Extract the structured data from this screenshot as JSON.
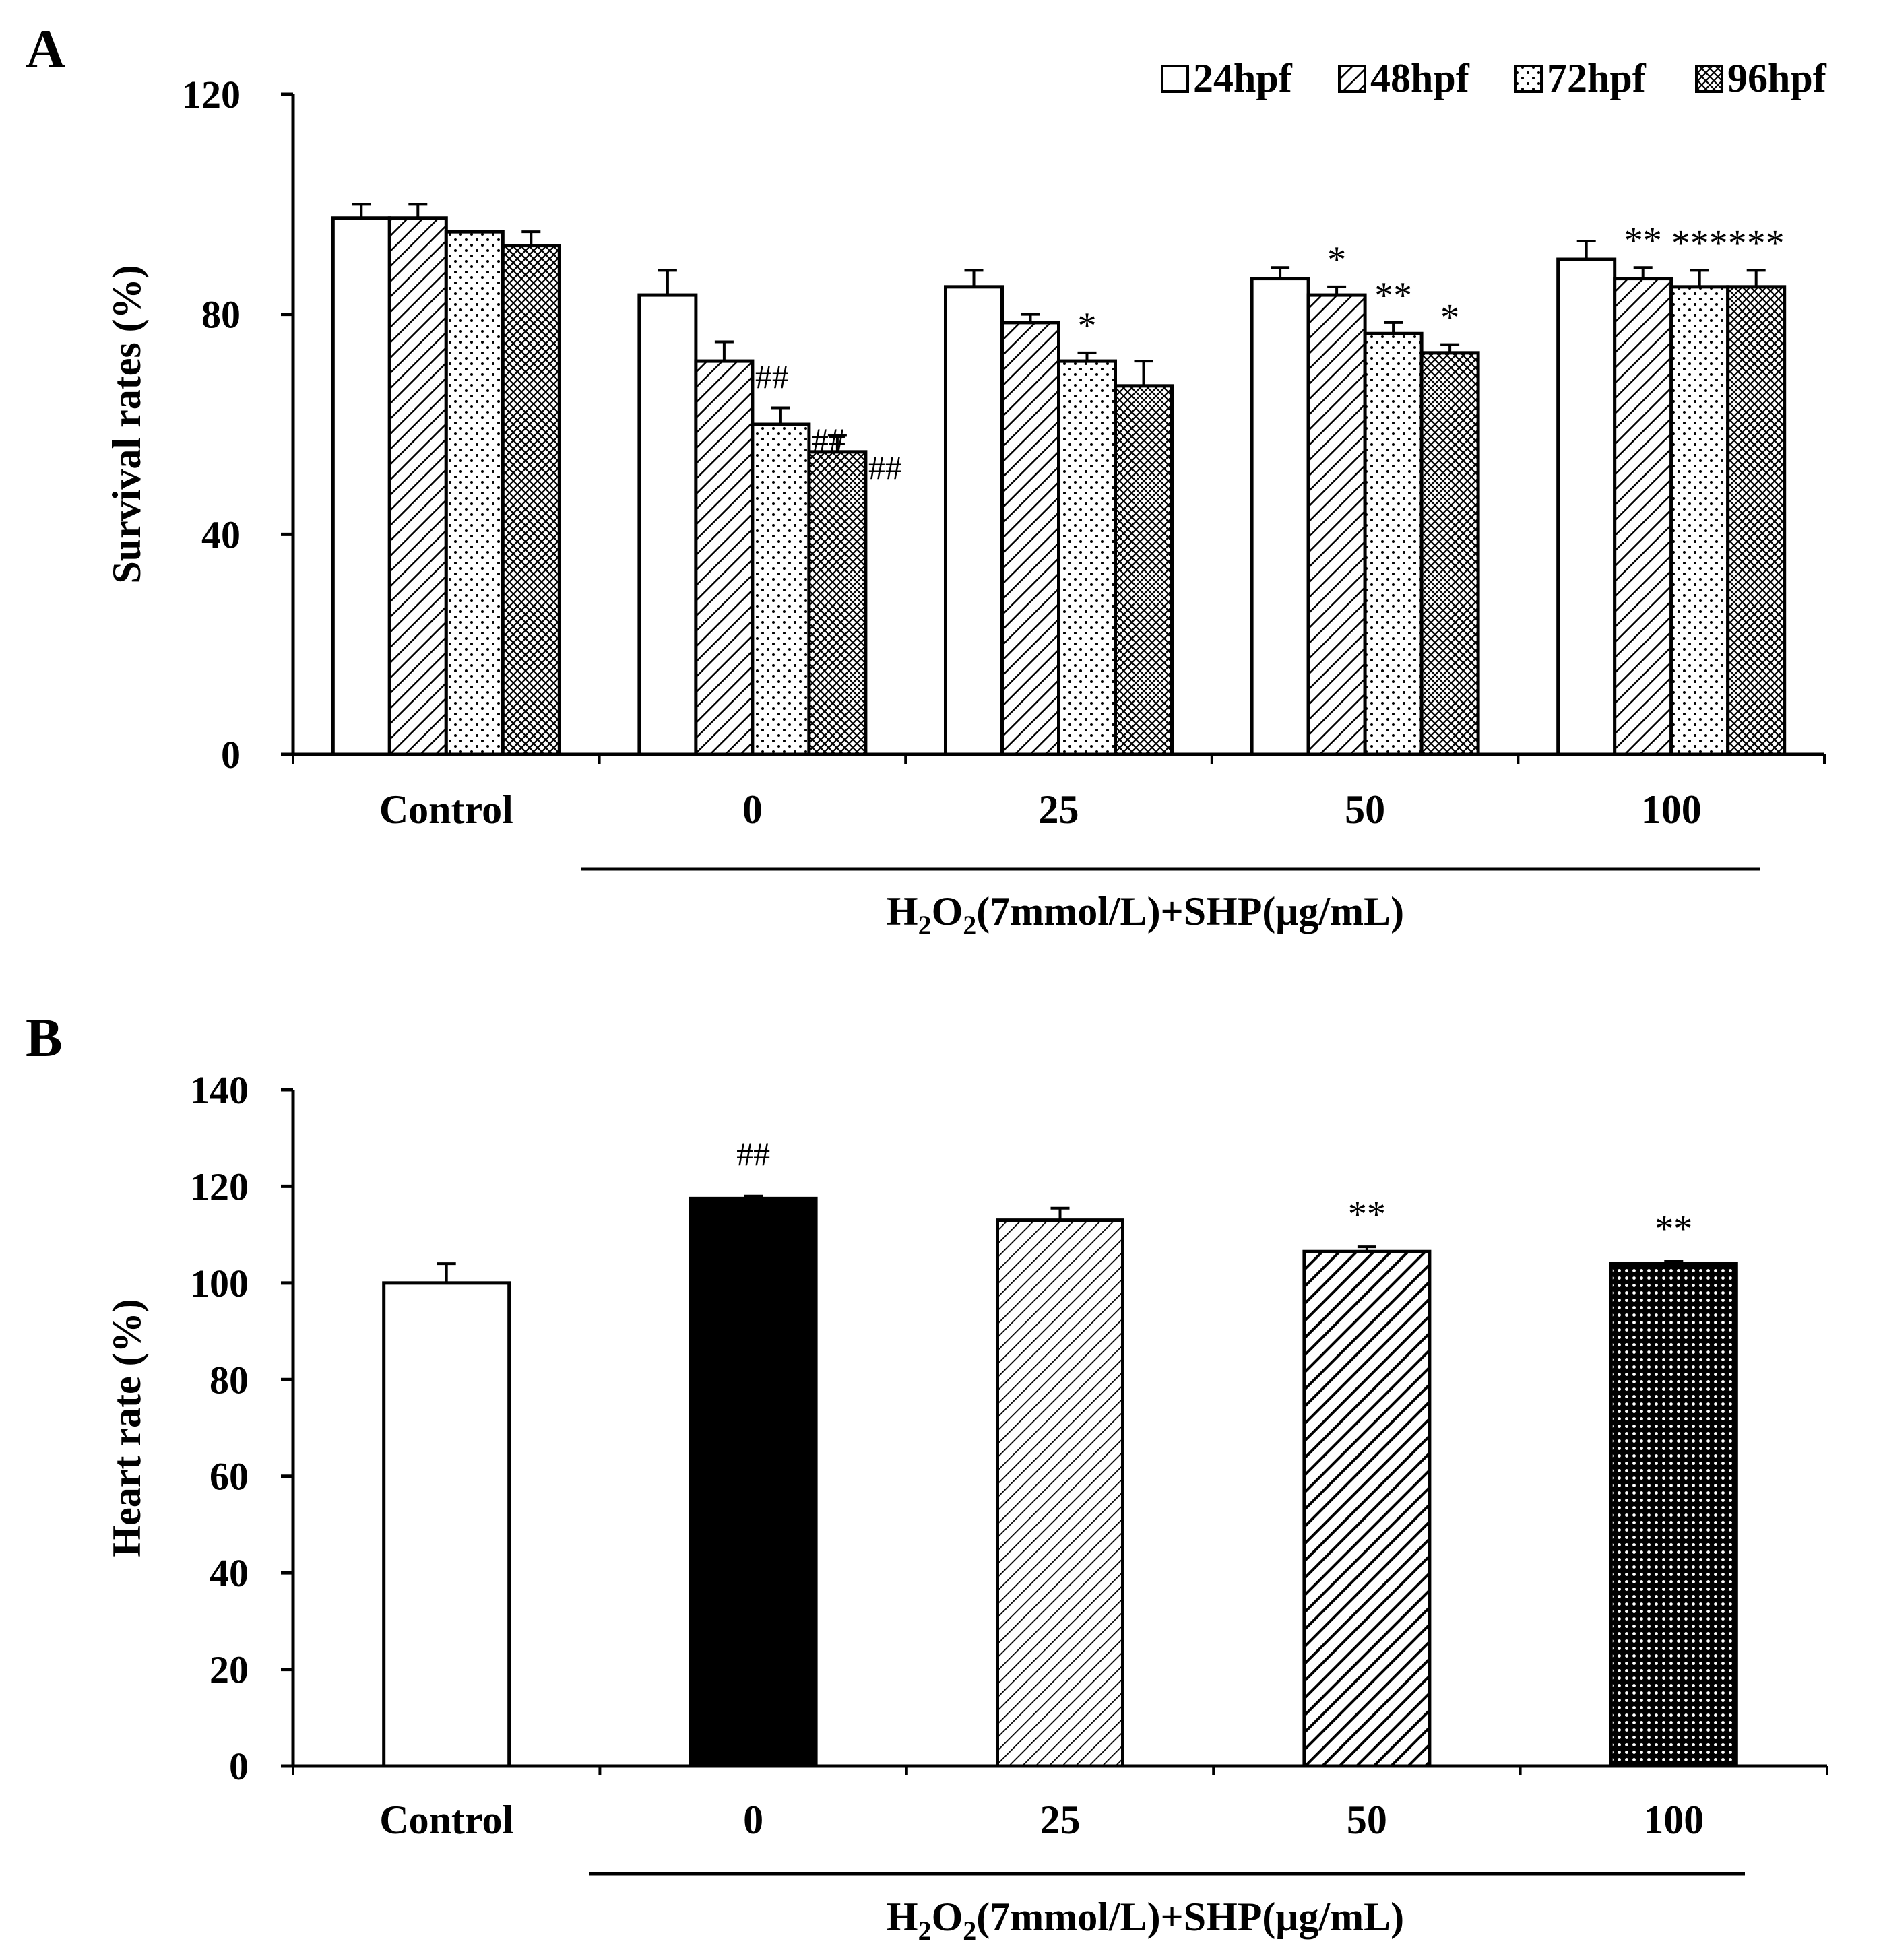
{
  "chart_data": [
    {
      "panel": "A",
      "type": "bar",
      "ylabel": "Survival rates (%)",
      "xlabel": "H2O2(7mmol/L)+SHP(μg/mL)",
      "xlabel_parts": {
        "h": "H",
        "sub1": "2",
        "o": "O",
        "sub2": "2",
        "rest": "(7mmol/L)+SHP(μg/mL)"
      },
      "ylim": [
        0,
        120
      ],
      "yticks": [
        "0",
        "40",
        "80",
        "120"
      ],
      "categories": [
        "Control",
        "0",
        "25",
        "50",
        "100"
      ],
      "legend_position": "top-right",
      "series": [
        {
          "name": "24hpf",
          "pattern": "open",
          "values": [
            97.5,
            83.5,
            85,
            86.5,
            90
          ],
          "errors": [
            2.5,
            4.5,
            3,
            2,
            3.3
          ],
          "annotations": [
            "",
            "",
            "",
            "",
            ""
          ]
        },
        {
          "name": "48hpf",
          "pattern": "diagonal-lines",
          "values": [
            97.5,
            71.5,
            78.5,
            83.5,
            86.5
          ],
          "errors": [
            2.5,
            3.5,
            1.5,
            1.5,
            2
          ],
          "annotations": [
            "",
            "##",
            "",
            "*",
            "**"
          ]
        },
        {
          "name": "72hpf",
          "pattern": "dots",
          "values": [
            95,
            60,
            71.5,
            76.5,
            85
          ],
          "errors": [
            0,
            3,
            1.5,
            2,
            3
          ],
          "annotations": [
            "",
            "##",
            "*",
            "**",
            "***"
          ]
        },
        {
          "name": "96hpf",
          "pattern": "crosshatch",
          "values": [
            92.5,
            55,
            67,
            73,
            85
          ],
          "errors": [
            2.5,
            3,
            4.5,
            1.5,
            3
          ],
          "annotations": [
            "",
            "##",
            "",
            "*",
            "***"
          ]
        }
      ]
    },
    {
      "panel": "B",
      "type": "bar",
      "ylabel": "Heart rate (%)",
      "xlabel": "H2O2(7mmol/L)+SHP(μg/mL)",
      "xlabel_parts": {
        "h": "H",
        "sub1": "2",
        "o": "O",
        "sub2": "2",
        "rest": "(7mmol/L)+SHP(μg/mL)"
      },
      "ylim": [
        0,
        140
      ],
      "yticks": [
        "0",
        "20",
        "40",
        "60",
        "80",
        "100",
        "120",
        "140"
      ],
      "categories": [
        "Control",
        "0",
        "25",
        "50",
        "100"
      ],
      "series": [
        {
          "name": "Heart rate",
          "values": [
            100,
            117.5,
            113,
            106.5,
            104
          ],
          "errors": [
            4,
            0.5,
            2.5,
            1,
            0.5
          ],
          "patterns": [
            "open",
            "solid",
            "fine-diagonal",
            "bold-diagonal",
            "fine-grid"
          ],
          "annotations": [
            "",
            "##",
            "",
            "**",
            "**"
          ]
        }
      ]
    }
  ],
  "colors": {
    "stroke": "#000000",
    "background": "#ffffff"
  }
}
